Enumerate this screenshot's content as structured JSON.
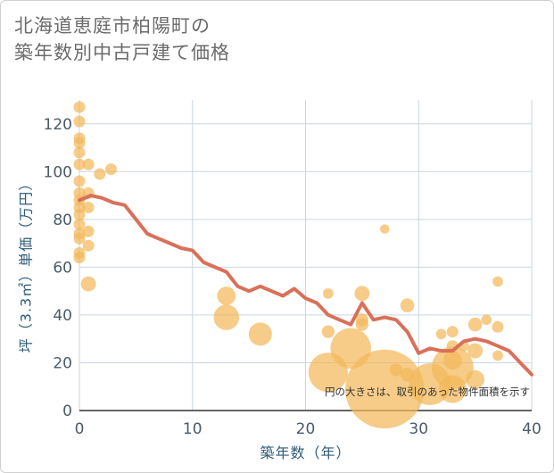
{
  "title_lines": [
    "北海道恵庭市柏陽町の",
    "築年数別中古戸建て価格"
  ],
  "colors": {
    "bubble": "#f2b85a",
    "line": "#d9705a",
    "grid": "#c9d6e3",
    "axis_text": "#4a5a6a",
    "axis_title": "#2f5d7a"
  },
  "chart_data": {
    "type": "scatter",
    "title": "北海道恵庭市柏陽町の築年数別中古戸建て価格",
    "xlabel": "築年数（年）",
    "ylabel": "坪（3.3㎡）単価（万円）",
    "xlim": [
      0,
      40
    ],
    "ylim": [
      0,
      130
    ],
    "x_ticks": [
      0,
      10,
      20,
      30,
      40
    ],
    "y_ticks": [
      0,
      20,
      40,
      60,
      80,
      100,
      120
    ],
    "grid": true,
    "note": "円の大きさは、取引のあった物件面積を示す",
    "bubbles": [
      {
        "x": 0,
        "y": 127,
        "size": 1
      },
      {
        "x": 0,
        "y": 121,
        "size": 1
      },
      {
        "x": 0,
        "y": 114,
        "size": 1
      },
      {
        "x": 0,
        "y": 112,
        "size": 1
      },
      {
        "x": 0,
        "y": 108,
        "size": 1
      },
      {
        "x": 0,
        "y": 103,
        "size": 1
      },
      {
        "x": 0,
        "y": 96,
        "size": 1
      },
      {
        "x": 0,
        "y": 91,
        "size": 1
      },
      {
        "x": 0,
        "y": 88,
        "size": 1
      },
      {
        "x": 0,
        "y": 85,
        "size": 1
      },
      {
        "x": 0,
        "y": 82,
        "size": 1
      },
      {
        "x": 0,
        "y": 78,
        "size": 1
      },
      {
        "x": 0,
        "y": 74,
        "size": 1
      },
      {
        "x": 0,
        "y": 72,
        "size": 1
      },
      {
        "x": 0,
        "y": 66,
        "size": 1
      },
      {
        "x": 0,
        "y": 64,
        "size": 1
      },
      {
        "x": 0.8,
        "y": 103,
        "size": 1
      },
      {
        "x": 0.8,
        "y": 91,
        "size": 1
      },
      {
        "x": 0.8,
        "y": 85,
        "size": 1
      },
      {
        "x": 0.8,
        "y": 75,
        "size": 1
      },
      {
        "x": 0.8,
        "y": 69,
        "size": 1
      },
      {
        "x": 0.8,
        "y": 53,
        "size": 1.3
      },
      {
        "x": 1.8,
        "y": 99,
        "size": 1
      },
      {
        "x": 2.8,
        "y": 101,
        "size": 1
      },
      {
        "x": 13,
        "y": 48,
        "size": 1.6
      },
      {
        "x": 13,
        "y": 39,
        "size": 2.2
      },
      {
        "x": 16,
        "y": 32,
        "size": 2
      },
      {
        "x": 22,
        "y": 49,
        "size": 0.9
      },
      {
        "x": 22,
        "y": 33,
        "size": 1.1
      },
      {
        "x": 22,
        "y": 16,
        "size": 3.4
      },
      {
        "x": 24,
        "y": 26,
        "size": 3.5
      },
      {
        "x": 25,
        "y": 49,
        "size": 1.3
      },
      {
        "x": 25,
        "y": 38,
        "size": 1.1
      },
      {
        "x": 25,
        "y": 36,
        "size": 1.1
      },
      {
        "x": 27,
        "y": 76,
        "size": 0.8
      },
      {
        "x": 27,
        "y": 9,
        "size": 6.8
      },
      {
        "x": 28,
        "y": 17,
        "size": 1.1
      },
      {
        "x": 29,
        "y": 44,
        "size": 1.2
      },
      {
        "x": 29,
        "y": 15,
        "size": 1.2
      },
      {
        "x": 31,
        "y": 11,
        "size": 3.6
      },
      {
        "x": 32,
        "y": 32,
        "size": 0.9
      },
      {
        "x": 33,
        "y": 33,
        "size": 1
      },
      {
        "x": 33,
        "y": 27,
        "size": 1
      },
      {
        "x": 33,
        "y": 21,
        "size": 1.6
      },
      {
        "x": 33,
        "y": 18,
        "size": 3.6
      },
      {
        "x": 33,
        "y": 9,
        "size": 2.4
      },
      {
        "x": 34,
        "y": 27,
        "size": 0.9
      },
      {
        "x": 35,
        "y": 36,
        "size": 1.2
      },
      {
        "x": 35,
        "y": 25,
        "size": 1.3
      },
      {
        "x": 35,
        "y": 13,
        "size": 1.6
      },
      {
        "x": 36,
        "y": 38,
        "size": 0.9
      },
      {
        "x": 37,
        "y": 54,
        "size": 0.9
      },
      {
        "x": 37,
        "y": 35,
        "size": 1
      },
      {
        "x": 37,
        "y": 23,
        "size": 0.9
      }
    ],
    "series": [
      {
        "x": [
          0,
          1,
          2,
          3,
          4,
          5,
          6,
          7,
          8,
          9,
          10,
          11,
          12,
          13,
          14,
          15,
          16,
          17,
          18,
          19,
          20,
          21,
          22,
          23,
          24,
          25,
          26,
          27,
          28,
          29,
          30,
          31,
          32,
          33,
          34,
          35,
          36,
          37,
          38,
          39,
          40
        ],
        "y": [
          88,
          90,
          89,
          87,
          86,
          80,
          74,
          72,
          70,
          68,
          67,
          62,
          60,
          58,
          52,
          50,
          52,
          50,
          48,
          51,
          47,
          45,
          40,
          38,
          36,
          45,
          38,
          39,
          38,
          33,
          24,
          26,
          25,
          25,
          29,
          30,
          29,
          27,
          25,
          20,
          15
        ]
      }
    ]
  }
}
